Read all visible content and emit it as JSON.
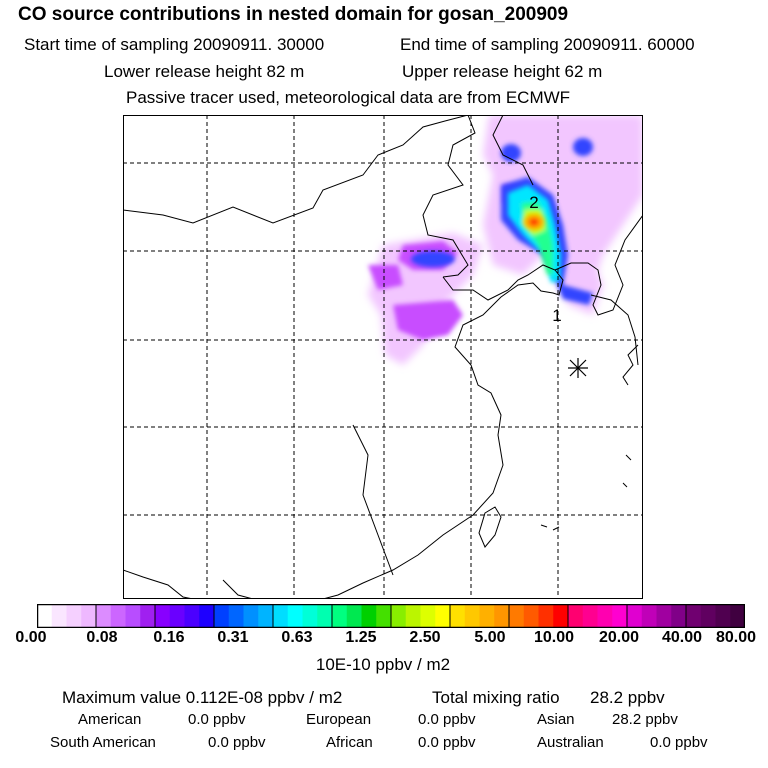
{
  "header": {
    "title": "CO  source contributions in nested domain for gosan_200909",
    "start_label": "Start time of sampling 20090911. 30000",
    "end_label": "End time of sampling 20090911. 60000",
    "lower_label": "Lower release height   82 m",
    "upper_label": "Upper release height   62 m",
    "tracer_label": "Passive tracer used, meteorological data are from ECMWF"
  },
  "map": {
    "markers": [
      {
        "label": "2",
        "lon": 126.0,
        "lat": 44.3
      },
      {
        "label": "1",
        "lon": 126.0,
        "lat": 37.5
      }
    ],
    "grid": {
      "lon_lines": [
        100,
        110,
        120,
        130
      ],
      "lat_lines": [
        45,
        35,
        25,
        15
      ]
    },
    "station_name": "gosan"
  },
  "colorbar": {
    "ticks": [
      "0.00",
      "0.08",
      "0.16",
      "0.31",
      "0.63",
      "1.25",
      "2.50",
      "5.00",
      "10.00",
      "20.00",
      "40.00",
      "80.00"
    ],
    "colors": [
      "#ffffff",
      "#fae6ff",
      "#f5d0ff",
      "#eeb8ff",
      "#dc8cff",
      "#cc66ff",
      "#b84dff",
      "#a020f0",
      "#8800ff",
      "#6a00ff",
      "#4b00ff",
      "#1e00ff",
      "#0040ff",
      "#0066ff",
      "#0090ff",
      "#00b4ff",
      "#00ddff",
      "#00ffff",
      "#00ffd8",
      "#00ffb0",
      "#00ff80",
      "#00e850",
      "#00d000",
      "#44e000",
      "#88ee00",
      "#bbf500",
      "#ddff00",
      "#ffff00",
      "#ffe000",
      "#ffc800",
      "#ffb000",
      "#ff9600",
      "#ff7a00",
      "#ff5a00",
      "#ff3000",
      "#ff0000",
      "#ff0070",
      "#ff0090",
      "#ff00b0",
      "#ff00d0",
      "#e000d0",
      "#c000b8",
      "#a000a0",
      "#800088",
      "#700070",
      "#600060",
      "#500050",
      "#400040"
    ],
    "unit_label": "10E-10 ppbv / m2"
  },
  "summary": {
    "max_label": "Maximum value  0.112E-08 ppbv / m2",
    "total_label": "Total mixing ratio",
    "total_value": "28.2 ppbv",
    "regions": [
      {
        "name": "American",
        "value": "0.0 ppbv"
      },
      {
        "name": "European",
        "value": "0.0 ppbv"
      },
      {
        "name": "Asian",
        "value": "28.2 ppbv"
      },
      {
        "name": "South American",
        "value": "0.0 ppbv"
      },
      {
        "name": "African",
        "value": "0.0 ppbv"
      },
      {
        "name": "Australian",
        "value": "0.0 ppbv"
      }
    ]
  }
}
